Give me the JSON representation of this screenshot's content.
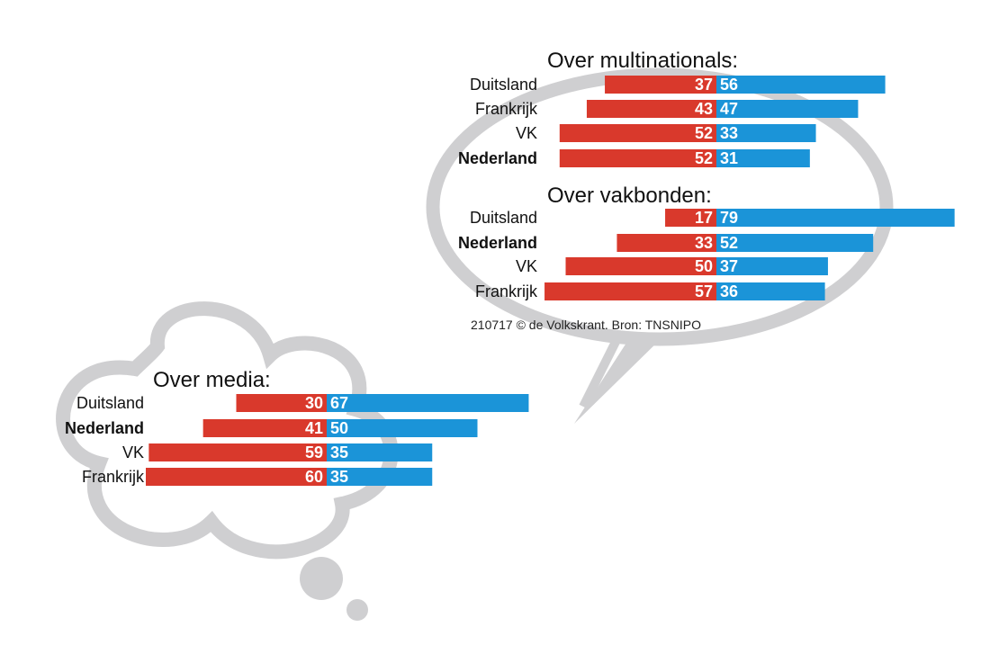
{
  "colors": {
    "negative": "#d9392c",
    "positive": "#1b94d8",
    "bubble": "#cfcfd1"
  },
  "credit": "210717 © de Volkskrant. Bron: TNSNIPO",
  "chart_data": [
    {
      "type": "bar",
      "title": "Over multinationals:",
      "categories": [
        "Duitsland",
        "Frankrijk",
        "VK",
        "Nederland"
      ],
      "highlight": "Nederland",
      "series": [
        {
          "values": [
            37,
            43,
            52,
            52
          ]
        },
        {
          "values": [
            56,
            47,
            33,
            31
          ]
        }
      ]
    },
    {
      "type": "bar",
      "title": "Over vakbonden:",
      "categories": [
        "Duitsland",
        "Nederland",
        "VK",
        "Frankrijk"
      ],
      "highlight": "Nederland",
      "series": [
        {
          "values": [
            17,
            33,
            50,
            57
          ]
        },
        {
          "values": [
            79,
            52,
            37,
            36
          ]
        }
      ]
    },
    {
      "type": "bar",
      "title": "Over media:",
      "categories": [
        "Duitsland",
        "Nederland",
        "VK",
        "Frankrijk"
      ],
      "highlight": "Nederland",
      "series": [
        {
          "values": [
            30,
            41,
            59,
            60
          ]
        },
        {
          "values": [
            67,
            50,
            35,
            35
          ]
        }
      ]
    }
  ]
}
